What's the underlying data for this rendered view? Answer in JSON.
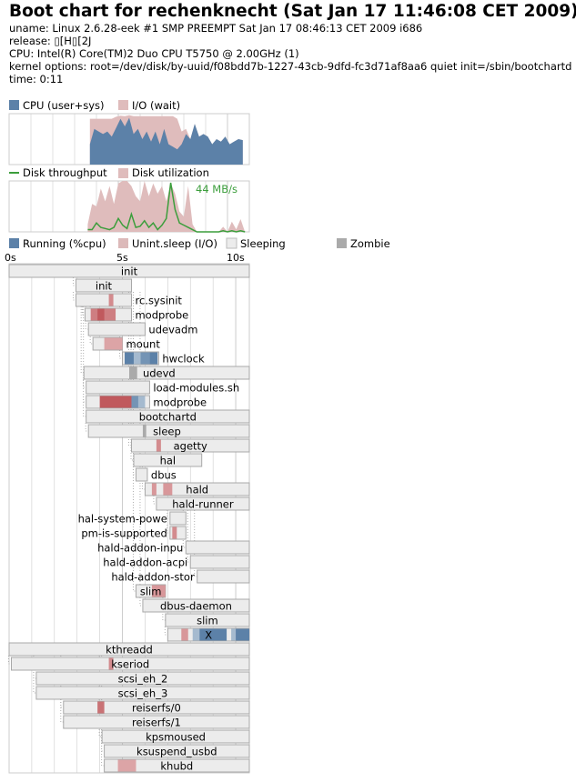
{
  "header": {
    "title": "Boot chart for rechenknecht (Sat Jan 17 11:46:08 CET 2009)",
    "uname": "uname: Linux 2.6.28-eek #1 SMP PREEMPT Sat Jan 17 08:46:13 CET 2009 i686",
    "release": "release: ▯[H▯[2J",
    "cpu": "CPU: Intel(R) Core(TM)2 Duo CPU     T5750  @ 2.00GHz (1)",
    "kernel_options": "kernel options: root=/dev/disk/by-uuid/f08bdd7b-1227-43cb-9dfd-fc3d71af8aa6 quiet init=/sbin/bootchartd",
    "time": "time: 0:11"
  },
  "colors": {
    "cpu": "#5c81a8",
    "io_wait": "#dfbcbc",
    "disk_throughput": "#3c9e3c",
    "disk_utilization": "#dfbcbc",
    "running": "#5c81a8",
    "unint_sleep": "#dcb9b9",
    "sleeping": "#ececec",
    "zombie": "#aaaaaa",
    "box_border": "#a8a8a8",
    "grid": "#cccccc"
  },
  "chart_data": [
    {
      "type": "area",
      "legend": [
        "CPU (user+sys)",
        "I/O (wait)"
      ],
      "xlim": [
        0,
        11
      ],
      "ylim": [
        0,
        100
      ],
      "series": [
        {
          "name": "CPU (user+sys)",
          "x": [
            3.7,
            3.9,
            4.1,
            4.3,
            4.5,
            4.7,
            4.9,
            5.1,
            5.3,
            5.5,
            5.7,
            5.9,
            6.1,
            6.3,
            6.5,
            6.7,
            6.9,
            7.1,
            7.3,
            7.5,
            7.7,
            7.9,
            8.1,
            8.3,
            8.5,
            8.7,
            8.9,
            9.1,
            9.3,
            9.5,
            9.7,
            9.9,
            10.1,
            10.3,
            10.5,
            10.7
          ],
          "values": [
            40,
            70,
            65,
            60,
            65,
            55,
            72,
            90,
            75,
            92,
            60,
            70,
            50,
            65,
            45,
            65,
            40,
            70,
            40,
            35,
            30,
            40,
            60,
            50,
            80,
            55,
            60,
            55,
            40,
            50,
            45,
            55,
            40,
            45,
            50,
            48
          ]
        },
        {
          "name": "I/O (wait)",
          "x": [
            3.7,
            3.9,
            4.1,
            4.3,
            4.5,
            4.7,
            4.9,
            5.1,
            5.3,
            5.5,
            5.7,
            5.9,
            6.1,
            6.3,
            6.5,
            6.7,
            6.9,
            7.1,
            7.3,
            7.5,
            7.7,
            7.9,
            8.1,
            8.3,
            8.5,
            8.7,
            8.9,
            9.1,
            9.3,
            9.5,
            9.7,
            9.9,
            10.1,
            10.3,
            10.5,
            10.7
          ],
          "values": [
            50,
            20,
            25,
            30,
            25,
            35,
            22,
            6,
            20,
            5,
            35,
            25,
            45,
            30,
            50,
            30,
            55,
            25,
            55,
            60,
            60,
            25,
            10,
            0,
            0,
            0,
            0,
            0,
            0,
            0,
            0,
            0,
            0,
            0,
            0,
            0
          ]
        }
      ]
    },
    {
      "type": "area",
      "legend": [
        "Disk throughput",
        "Disk utilization"
      ],
      "annotation": "44 MB/s",
      "xlim": [
        0,
        11
      ],
      "series": [
        {
          "name": "Disk utilization",
          "unit": "%",
          "ylim": [
            0,
            100
          ],
          "x": [
            3.6,
            3.8,
            4.0,
            4.2,
            4.4,
            4.6,
            4.8,
            5.0,
            5.2,
            5.4,
            5.6,
            5.8,
            6.0,
            6.2,
            6.4,
            6.6,
            6.8,
            7.0,
            7.2,
            7.4,
            7.6,
            7.8,
            8.0,
            8.2,
            8.4,
            8.6,
            8.8,
            9.0,
            9.2,
            9.4,
            9.6,
            9.8,
            10.0,
            10.2,
            10.4,
            10.6,
            10.8
          ],
          "values": [
            15,
            55,
            50,
            85,
            60,
            90,
            55,
            95,
            100,
            100,
            90,
            70,
            60,
            100,
            70,
            95,
            75,
            90,
            60,
            95,
            75,
            40,
            30,
            90,
            15,
            0,
            0,
            0,
            0,
            0,
            0,
            10,
            0,
            20,
            5,
            25,
            0
          ]
        },
        {
          "name": "Disk throughput",
          "unit": "MB/s",
          "ylim": [
            0,
            44
          ],
          "x": [
            3.6,
            3.8,
            4.0,
            4.2,
            4.4,
            4.6,
            4.8,
            5.0,
            5.2,
            5.4,
            5.6,
            5.8,
            6.0,
            6.2,
            6.4,
            6.6,
            6.8,
            7.0,
            7.2,
            7.4,
            7.6,
            7.8,
            8.0,
            8.2,
            8.4,
            8.6,
            8.8,
            9.0,
            9.2,
            9.4,
            9.6,
            9.8,
            10.0,
            10.2,
            10.4,
            10.6,
            10.8
          ],
          "values": [
            2,
            2,
            8,
            4,
            3,
            2,
            4,
            12,
            6,
            3,
            16,
            4,
            5,
            10,
            4,
            8,
            2,
            6,
            12,
            44,
            20,
            8,
            6,
            4,
            2,
            0,
            0,
            0,
            0,
            0,
            0,
            1,
            0,
            1,
            0,
            1,
            0
          ]
        }
      ]
    },
    {
      "type": "timeline",
      "legend": [
        {
          "label": "Running (%cpu)",
          "state": "running"
        },
        {
          "label": "Unint.sleep (I/O)",
          "state": "unint"
        },
        {
          "label": "Sleeping",
          "state": "sleeping"
        },
        {
          "label": "Zombie",
          "state": "zombie"
        }
      ],
      "tick_labels": [
        "0s",
        "5s",
        "10s"
      ],
      "xlim": [
        0,
        10.6
      ],
      "processes": [
        {
          "name": "init",
          "start": 0.0,
          "end": 10.6,
          "label_pos": "inside",
          "parent": null,
          "segs": []
        },
        {
          "name": "init",
          "start": 2.95,
          "end": 5.4,
          "label_pos": "inside",
          "parent": 0,
          "segs": []
        },
        {
          "name": "rc.sysinit",
          "start": 2.95,
          "end": 5.4,
          "label_pos": "after",
          "parent": 1,
          "segs": [
            {
              "s": 4.4,
              "e": 4.6,
              "t": "unint",
              "v": 0.6
            }
          ]
        },
        {
          "name": "modprobe",
          "start": 3.35,
          "end": 5.4,
          "label_pos": "after",
          "parent": 2,
          "segs": [
            {
              "s": 3.6,
              "e": 4.7,
              "t": "unint",
              "v": 0.7
            },
            {
              "s": 3.9,
              "e": 4.2,
              "t": "unint",
              "v": 1.0
            }
          ]
        },
        {
          "name": "udevadm",
          "start": 3.5,
          "end": 6.0,
          "label_pos": "after",
          "parent": 2,
          "segs": []
        },
        {
          "name": "mount",
          "start": 3.7,
          "end": 5.0,
          "label_pos": "after",
          "parent": 2,
          "segs": [
            {
              "s": 4.2,
              "e": 5.0,
              "t": "unint",
              "v": 0.4
            }
          ]
        },
        {
          "name": "hwclock",
          "start": 5.0,
          "end": 6.6,
          "label_pos": "after",
          "parent": 2,
          "segs": [
            {
              "s": 5.1,
              "e": 5.5,
              "t": "running",
              "v": 1.0
            },
            {
              "s": 5.5,
              "e": 5.8,
              "t": "running",
              "v": 0.4
            },
            {
              "s": 5.8,
              "e": 6.2,
              "t": "running",
              "v": 0.8
            },
            {
              "s": 6.2,
              "e": 6.55,
              "t": "running",
              "v": 1.0
            }
          ]
        },
        {
          "name": "udevd",
          "start": 3.3,
          "end": 10.6,
          "label_pos": "after_midpoint",
          "parent": 2,
          "segs": [
            {
              "s": 5.3,
              "e": 5.65,
              "t": "zombie",
              "v": 1.0
            }
          ]
        },
        {
          "name": "load-modules.sh",
          "start": 3.4,
          "end": 6.2,
          "label_pos": "after",
          "parent": 7,
          "segs": []
        },
        {
          "name": "modprobe",
          "start": 3.4,
          "end": 6.2,
          "label_pos": "after",
          "parent": 8,
          "segs": [
            {
              "s": 4.0,
              "e": 5.4,
              "t": "unint",
              "v": 1.0
            },
            {
              "s": 5.4,
              "e": 5.7,
              "t": "running",
              "v": 0.8
            },
            {
              "s": 5.7,
              "e": 6.0,
              "t": "running",
              "v": 0.4
            }
          ]
        },
        {
          "name": "bootchartd",
          "start": 3.4,
          "end": 10.6,
          "label_pos": "inside",
          "parent": 2,
          "segs": []
        },
        {
          "name": "sleep",
          "start": 3.5,
          "end": 10.6,
          "label_pos": "after_midpoint",
          "parent": 10,
          "segs": [
            {
              "s": 5.9,
              "e": 6.05,
              "t": "zombie",
              "v": 1.0
            }
          ]
        },
        {
          "name": "agetty",
          "start": 5.4,
          "end": 10.6,
          "label_pos": "inside",
          "parent": 1,
          "segs": [
            {
              "s": 6.5,
              "e": 6.7,
              "t": "unint",
              "v": 0.6
            }
          ]
        },
        {
          "name": "hal",
          "start": 5.5,
          "end": 8.5,
          "label_pos": "inside",
          "parent": 1,
          "segs": []
        },
        {
          "name": "dbus",
          "start": 5.6,
          "end": 6.1,
          "label_pos": "after",
          "parent": 1,
          "segs": []
        },
        {
          "name": "hald",
          "start": 6.0,
          "end": 10.6,
          "label_pos": "inside",
          "parent": 13,
          "segs": [
            {
              "s": 6.3,
              "e": 6.5,
              "t": "unint",
              "v": 0.5
            },
            {
              "s": 6.8,
              "e": 7.2,
              "t": "unint",
              "v": 0.5
            }
          ]
        },
        {
          "name": "hald-runner",
          "start": 6.5,
          "end": 10.6,
          "label_pos": "inside",
          "parent": 15,
          "segs": []
        },
        {
          "name": "hal-system-powe",
          "start": 7.1,
          "end": 7.8,
          "label_pos": "before",
          "parent": 16,
          "segs": []
        },
        {
          "name": "pm-is-supported",
          "start": 7.1,
          "end": 7.8,
          "label_pos": "before",
          "parent": 17,
          "segs": [
            {
              "s": 7.2,
              "e": 7.4,
              "t": "unint",
              "v": 0.6
            }
          ]
        },
        {
          "name": "hald-addon-inpu",
          "start": 7.8,
          "end": 10.6,
          "label_pos": "before",
          "parent": 16,
          "segs": []
        },
        {
          "name": "hald-addon-acpi",
          "start": 8.0,
          "end": 10.6,
          "label_pos": "before",
          "parent": 16,
          "segs": []
        },
        {
          "name": "hald-addon-stor",
          "start": 8.3,
          "end": 10.6,
          "label_pos": "before",
          "parent": 16,
          "segs": []
        },
        {
          "name": "slim",
          "start": 5.6,
          "end": 6.9,
          "label_pos": "inside",
          "parent": 1,
          "segs": [
            {
              "s": 6.3,
              "e": 6.9,
              "t": "unint",
              "v": 0.5
            }
          ]
        },
        {
          "name": "dbus-daemon",
          "start": 5.9,
          "end": 10.6,
          "label_pos": "inside",
          "parent": 1,
          "segs": []
        },
        {
          "name": "slim",
          "start": 6.9,
          "end": 10.6,
          "label_pos": "inside",
          "parent": 22,
          "segs": []
        },
        {
          "name": "X",
          "start": 7.0,
          "end": 10.6,
          "label_pos": "inside",
          "parent": 24,
          "segs": [
            {
              "s": 7.6,
              "e": 7.9,
              "t": "unint",
              "v": 0.5
            },
            {
              "s": 8.1,
              "e": 8.4,
              "t": "running",
              "v": 0.4
            },
            {
              "s": 8.4,
              "e": 9.6,
              "t": "running",
              "v": 1.0
            },
            {
              "s": 9.8,
              "e": 10.0,
              "t": "running",
              "v": 0.4
            },
            {
              "s": 10.0,
              "e": 10.6,
              "t": "running",
              "v": 1.0
            }
          ]
        },
        {
          "name": "kthreadd",
          "start": 0.0,
          "end": 10.6,
          "label_pos": "inside",
          "parent": null,
          "segs": []
        },
        {
          "name": "kseriod",
          "start": 0.1,
          "end": 10.6,
          "label_pos": "inside",
          "parent": 26,
          "segs": [
            {
              "s": 4.4,
              "e": 4.6,
              "t": "unint",
              "v": 0.6
            }
          ]
        },
        {
          "name": "scsi_eh_2",
          "start": 1.2,
          "end": 10.6,
          "label_pos": "inside",
          "parent": 26,
          "segs": []
        },
        {
          "name": "scsi_eh_3",
          "start": 1.2,
          "end": 10.6,
          "label_pos": "inside",
          "parent": 26,
          "segs": []
        },
        {
          "name": "reiserfs/0",
          "start": 2.4,
          "end": 10.6,
          "label_pos": "inside",
          "parent": 26,
          "segs": [
            {
              "s": 3.9,
              "e": 4.2,
              "t": "unint",
              "v": 0.8
            }
          ]
        },
        {
          "name": "reiserfs/1",
          "start": 2.4,
          "end": 10.6,
          "label_pos": "inside",
          "parent": 26,
          "segs": []
        },
        {
          "name": "kpsmoused",
          "start": 4.1,
          "end": 10.6,
          "label_pos": "inside",
          "parent": 26,
          "segs": []
        },
        {
          "name": "ksuspend_usbd",
          "start": 4.2,
          "end": 10.6,
          "label_pos": "inside",
          "parent": 26,
          "segs": []
        },
        {
          "name": "khubd",
          "start": 4.2,
          "end": 10.6,
          "label_pos": "inside",
          "parent": 26,
          "segs": [
            {
              "s": 4.8,
              "e": 5.6,
              "t": "unint",
              "v": 0.4
            }
          ]
        }
      ]
    }
  ]
}
